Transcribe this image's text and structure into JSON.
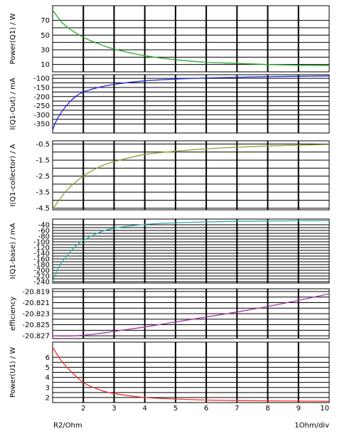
{
  "chart_data": {
    "type": "line",
    "xlabel": "R2/Ohm",
    "x_scale_note": "1Ohm/div",
    "xlim": [
      1,
      10
    ],
    "x_ticks": [
      "2",
      "3",
      "4",
      "5",
      "6",
      "7",
      "8",
      "9",
      "10"
    ],
    "panels": [
      {
        "ylabel": "Power(Q1) / W",
        "ylim": [
          0,
          90
        ],
        "y_ticks": [
          "70",
          "50",
          "30",
          "10"
        ],
        "color": "#22aa22",
        "x": [
          1,
          1.25,
          1.5,
          2,
          2.5,
          3,
          4,
          5,
          6,
          7,
          8,
          9,
          10
        ],
        "y": [
          84,
          70,
          60,
          47,
          38,
          31,
          22,
          16.5,
          13,
          11.5,
          10,
          9,
          8.5
        ]
      },
      {
        "ylabel": "I(Q1-Out) / mA",
        "ylim": [
          -400,
          -80
        ],
        "y_ticks": [
          "-100",
          "-150",
          "-200",
          "-250",
          "-300",
          "-350"
        ],
        "color": "#2222dd",
        "x": [
          1,
          1.1,
          1.25,
          1.5,
          1.75,
          2,
          2.5,
          3,
          4,
          5,
          6,
          7,
          8,
          9,
          10
        ],
        "y": [
          -385,
          -340,
          -295,
          -240,
          -200,
          -175,
          -150,
          -133,
          -114,
          -104,
          -98,
          -94,
          -91,
          -89,
          -87
        ]
      },
      {
        "ylabel": "I(Q1-collector) / A",
        "ylim": [
          -4.6,
          -0.3
        ],
        "y_ticks": [
          "-0.5",
          "-1.5",
          "-2.5",
          "-3.5",
          "-4.5"
        ],
        "color": "#999933",
        "x": [
          1,
          1.25,
          1.5,
          2,
          2.5,
          3,
          4,
          5,
          6,
          7,
          8,
          9,
          10
        ],
        "y": [
          -4.55,
          -3.9,
          -3.3,
          -2.5,
          -1.95,
          -1.6,
          -1.15,
          -0.95,
          -0.8,
          -0.7,
          -0.62,
          -0.57,
          -0.52
        ]
      },
      {
        "ylabel": "I(Q1-base) / mA",
        "ylim": [
          -245,
          -20
        ],
        "y_ticks": [
          "-40",
          "-60",
          "-80",
          "-100",
          "-120",
          "-140",
          "-160",
          "-180",
          "-200",
          "-220",
          "-240"
        ],
        "color": "#33aaaa",
        "x": [
          1,
          1.1,
          1.25,
          1.5,
          1.75,
          2,
          2.5,
          3,
          4,
          5,
          6,
          7,
          8,
          9,
          10
        ],
        "y": [
          -240,
          -210,
          -180,
          -145,
          -115,
          -95,
          -68,
          -52,
          -39,
          -33,
          -30,
          -28,
          -27,
          -26,
          -25.5
        ]
      },
      {
        "ylabel": "efficiency",
        "ylim": [
          -20.8275,
          -20.8185
        ],
        "y_ticks": [
          "-20.819",
          "-20.821",
          "-20.823",
          "-20.825",
          "-20.827"
        ],
        "color": "#aa33aa",
        "x": [
          1,
          1.5,
          2,
          2.5,
          3,
          4,
          5,
          6,
          7,
          8,
          9,
          10
        ],
        "y": [
          -20.827,
          -20.82705,
          -20.8269,
          -20.8266,
          -20.8262,
          -20.8254,
          -20.8245,
          -20.8236,
          -20.8227,
          -20.8217,
          -20.8206,
          -20.8194
        ]
      },
      {
        "ylabel": "Power(U1) / W",
        "ylim": [
          1.5,
          7.5
        ],
        "y_ticks": [
          "6",
          "5",
          "4",
          "3",
          "2"
        ],
        "color": "#ee3333",
        "x": [
          1,
          1.25,
          1.5,
          2,
          2.5,
          3,
          4,
          5,
          6,
          7,
          8,
          9,
          10
        ],
        "y": [
          7.0,
          5.8,
          4.9,
          3.5,
          2.8,
          2.4,
          2.0,
          1.85,
          1.75,
          1.7,
          1.67,
          1.65,
          1.63
        ]
      }
    ]
  }
}
